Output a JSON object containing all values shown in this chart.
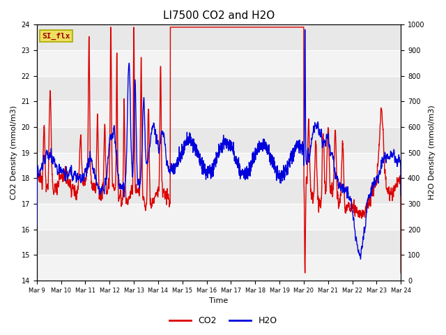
{
  "title": "LI7500 CO2 and H2O",
  "xlabel": "Time",
  "ylabel_left": "CO2 Density (mmol/m3)",
  "ylabel_right": "H2O Density (mmol/m3)",
  "co2_color": "#dd0000",
  "h2o_color": "#0000dd",
  "ylim_left": [
    14.0,
    24.0
  ],
  "ylim_right": [
    0,
    1000
  ],
  "yticks_left": [
    14.0,
    15.0,
    16.0,
    17.0,
    18.0,
    19.0,
    20.0,
    21.0,
    22.0,
    23.0,
    24.0
  ],
  "yticks_right": [
    0,
    100,
    200,
    300,
    400,
    500,
    600,
    700,
    800,
    900,
    1000
  ],
  "xtick_labels": [
    "Mar 9",
    "Mar 10",
    "Mar 11",
    "Mar 12",
    "Mar 13",
    "Mar 14",
    "Mar 15",
    "Mar 16",
    "Mar 17",
    "Mar 18",
    "Mar 19",
    "Mar 20",
    "Mar 21",
    "Mar 22",
    "Mar 23",
    "Mar 24"
  ],
  "watermark_text": "SI_flx",
  "watermark_bg": "#eedf60",
  "watermark_border": "#aaaa00",
  "watermark_color": "#990000",
  "bg_color": "#e8e8e8",
  "legend_labels": [
    "CO2",
    "H2O"
  ],
  "line_width": 1.0,
  "title_fontsize": 11,
  "axis_fontsize": 8,
  "tick_fontsize": 7
}
